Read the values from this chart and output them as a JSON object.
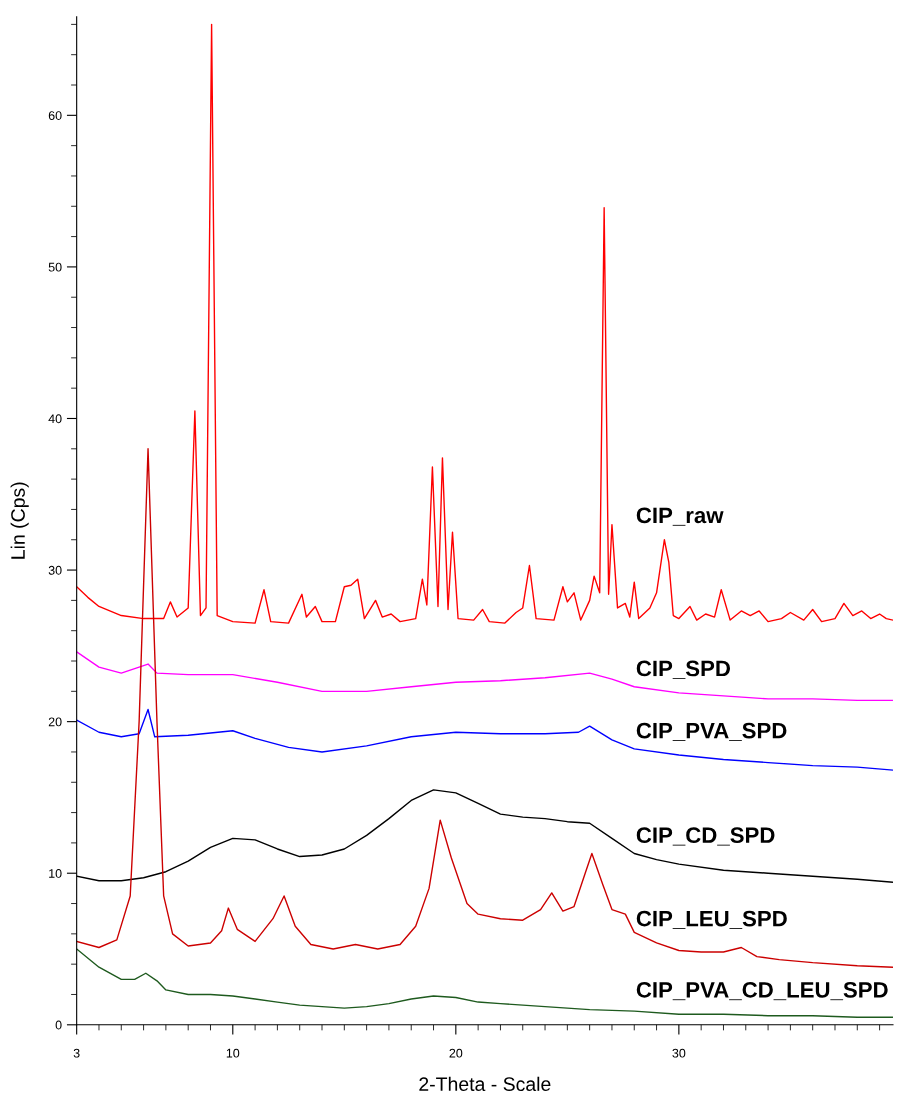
{
  "chart_data": {
    "type": "line",
    "xlabel": "2-Theta - Scale",
    "ylabel": "Lin (Cps)",
    "xlim": [
      3,
      39.6
    ],
    "ylim": [
      0,
      66.5
    ],
    "xticks": [
      3,
      {
        "value": 4,
        "label": null
      },
      {
        "value": 5,
        "label": null
      },
      {
        "value": 6,
        "label": null
      },
      {
        "value": 7,
        "label": null
      },
      {
        "value": 8,
        "label": null
      },
      {
        "value": 9,
        "label": null
      },
      10,
      {
        "value": 11,
        "label": null
      },
      {
        "value": 12,
        "label": null
      },
      {
        "value": 13,
        "label": null
      },
      {
        "value": 14,
        "label": null
      },
      {
        "value": 15,
        "label": null
      },
      {
        "value": 16,
        "label": null
      },
      {
        "value": 17,
        "label": null
      },
      {
        "value": 18,
        "label": null
      },
      {
        "value": 19,
        "label": null
      },
      20,
      {
        "value": 21,
        "label": null
      },
      {
        "value": 22,
        "label": null
      },
      {
        "value": 23,
        "label": null
      },
      {
        "value": 24,
        "label": null
      },
      {
        "value": 25,
        "label": null
      },
      {
        "value": 26,
        "label": null
      },
      {
        "value": 27,
        "label": null
      },
      {
        "value": 28,
        "label": null
      },
      {
        "value": 29,
        "label": null
      },
      30,
      {
        "value": 31,
        "label": null
      },
      {
        "value": 32,
        "label": null
      },
      {
        "value": 33,
        "label": null
      },
      {
        "value": 34,
        "label": null
      },
      {
        "value": 35,
        "label": null
      },
      {
        "value": 36,
        "label": null
      },
      {
        "value": 37,
        "label": null
      },
      {
        "value": 38,
        "label": null
      },
      {
        "value": 39,
        "label": null
      }
    ],
    "yticks": [
      0,
      {
        "value": 2,
        "label": null
      },
      {
        "value": 4,
        "label": null
      },
      {
        "value": 6,
        "label": null
      },
      {
        "value": 8,
        "label": null
      },
      10,
      {
        "value": 12,
        "label": null
      },
      {
        "value": 14,
        "label": null
      },
      {
        "value": 16,
        "label": null
      },
      {
        "value": 18,
        "label": null
      },
      20,
      {
        "value": 22,
        "label": null
      },
      {
        "value": 24,
        "label": null
      },
      {
        "value": 26,
        "label": null
      },
      {
        "value": 28,
        "label": null
      },
      30,
      {
        "value": 32,
        "label": null
      },
      {
        "value": 34,
        "label": null
      },
      {
        "value": 36,
        "label": null
      },
      {
        "value": 38,
        "label": null
      },
      40,
      {
        "value": 42,
        "label": null
      },
      {
        "value": 44,
        "label": null
      },
      {
        "value": 46,
        "label": null
      },
      {
        "value": 48,
        "label": null
      },
      50,
      {
        "value": 52,
        "label": null
      },
      {
        "value": 54,
        "label": null
      },
      {
        "value": 56,
        "label": null
      },
      {
        "value": 58,
        "label": null
      },
      60,
      {
        "value": 62,
        "label": null
      },
      {
        "value": 64,
        "label": null
      },
      {
        "value": 66,
        "label": null
      }
    ],
    "grid": false,
    "legend": false,
    "marker": "none",
    "line_style": "solid",
    "series": [
      {
        "name": "CIP_raw",
        "color": "#ff0000",
        "x": [
          3,
          3.5,
          4,
          5,
          6,
          6.9,
          7.2,
          7.5,
          8.0,
          8.3,
          8.55,
          8.8,
          9.05,
          9.3,
          10,
          11.0,
          11.4,
          11.7,
          12.5,
          13.1,
          13.3,
          13.7,
          14,
          14.6,
          15.0,
          15.3,
          15.6,
          15.9,
          16.4,
          16.7,
          17.1,
          17.5,
          18.2,
          18.5,
          18.7,
          18.95,
          19.2,
          19.4,
          19.65,
          19.85,
          20.1,
          20.8,
          21.2,
          21.5,
          22.2,
          22.7,
          23.0,
          23.3,
          23.6,
          24.4,
          24.8,
          25.0,
          25.3,
          25.6,
          26.0,
          26.2,
          26.45,
          26.65,
          26.85,
          27.0,
          27.25,
          27.6,
          27.8,
          28.0,
          28.2,
          28.7,
          29.0,
          29.35,
          29.55,
          29.75,
          30.0,
          30.5,
          30.8,
          31.2,
          31.6,
          31.9,
          32.3,
          32.8,
          33.2,
          33.6,
          34,
          34.6,
          35.0,
          35.6,
          36.0,
          36.4,
          37.0,
          37.4,
          37.8,
          38.2,
          38.6,
          39.0,
          39.3,
          39.6
        ],
        "values": [
          28.9,
          28.2,
          27.6,
          27.0,
          26.8,
          26.8,
          27.9,
          26.9,
          27.5,
          40.5,
          27.0,
          27.5,
          66,
          27,
          26.6,
          26.5,
          28.7,
          26.6,
          26.5,
          28.4,
          26.9,
          27.6,
          26.6,
          26.6,
          28.9,
          29.0,
          29.4,
          26.8,
          28.0,
          26.9,
          27.1,
          26.6,
          26.8,
          29.4,
          27.7,
          36.8,
          27.6,
          37.4,
          27.4,
          32.5,
          26.8,
          26.7,
          27.4,
          26.6,
          26.5,
          27.2,
          27.5,
          30.3,
          26.8,
          26.7,
          28.9,
          27.9,
          28.5,
          26.7,
          28.0,
          29.6,
          28.5,
          53.9,
          28.4,
          33.0,
          27.5,
          27.8,
          26.9,
          29.2,
          26.8,
          27.5,
          28.5,
          32.0,
          30.5,
          27.0,
          26.8,
          27.6,
          26.7,
          27.1,
          26.9,
          28.7,
          26.7,
          27.3,
          27.0,
          27.3,
          26.6,
          26.8,
          27.2,
          26.7,
          27.4,
          26.6,
          26.8,
          27.8,
          27.0,
          27.3,
          26.8,
          27.1,
          26.8,
          26.7
        ]
      },
      {
        "name": "CIP_SPD",
        "color": "#ff00ff",
        "x": [
          3,
          4,
          5,
          6.2,
          6.6,
          8,
          10,
          12,
          14,
          16,
          18,
          20,
          22,
          24,
          26,
          27,
          28,
          30,
          32,
          34,
          36,
          38,
          39.6
        ],
        "values": [
          24.6,
          23.6,
          23.2,
          23.8,
          23.2,
          23.1,
          23.1,
          22.6,
          22.0,
          22.0,
          22.3,
          22.6,
          22.7,
          22.9,
          23.2,
          22.8,
          22.3,
          21.9,
          21.7,
          21.5,
          21.5,
          21.4,
          21.4
        ]
      },
      {
        "name": "CIP_PVA_SPD",
        "color": "#0000ff",
        "x": [
          3,
          4,
          5,
          5.8,
          6.2,
          6.5,
          8,
          10,
          11,
          12.5,
          14,
          16,
          18,
          20,
          22,
          24,
          25.5,
          26,
          27,
          28,
          30,
          32,
          34,
          36,
          38,
          39.6
        ],
        "values": [
          20.1,
          19.3,
          19.0,
          19.2,
          20.8,
          19.0,
          19.1,
          19.4,
          18.9,
          18.3,
          18.0,
          18.4,
          19.0,
          19.3,
          19.2,
          19.2,
          19.3,
          19.7,
          18.8,
          18.2,
          17.8,
          17.5,
          17.3,
          17.1,
          17.0,
          16.8
        ]
      },
      {
        "name": "CIP_CD_SPD",
        "color": "#000000",
        "x": [
          3,
          4,
          5,
          6,
          7,
          8,
          9,
          10,
          11,
          12,
          13,
          14,
          15,
          16,
          17,
          18,
          19,
          20,
          21,
          22,
          23,
          24,
          25,
          26,
          27,
          28,
          29,
          30,
          32,
          34,
          36,
          38,
          39.6
        ],
        "values": [
          9.8,
          9.5,
          9.5,
          9.7,
          10.1,
          10.8,
          11.7,
          12.3,
          12.2,
          11.6,
          11.1,
          11.2,
          11.6,
          12.5,
          13.6,
          14.8,
          15.5,
          15.3,
          14.6,
          13.9,
          13.7,
          13.6,
          13.4,
          13.3,
          12.3,
          11.3,
          10.9,
          10.6,
          10.2,
          10.0,
          9.8,
          9.6,
          9.4
        ]
      },
      {
        "name": "CIP_LEU_SPD",
        "color": "#cc0000",
        "x": [
          3,
          4,
          4.8,
          5.4,
          5.8,
          6.2,
          6.6,
          6.9,
          7.3,
          8,
          9,
          9.5,
          9.8,
          10.2,
          11,
          11.8,
          12.3,
          12.8,
          13.5,
          14.5,
          15.5,
          16.5,
          17.5,
          18.2,
          18.8,
          19.3,
          19.8,
          20.5,
          21,
          22,
          23,
          23.8,
          24.3,
          24.8,
          25.3,
          25.8,
          26.1,
          26.6,
          27,
          27.6,
          28,
          29,
          30,
          31,
          32,
          32.8,
          33.5,
          34.5,
          36,
          38,
          39.6
        ],
        "values": [
          5.5,
          5.1,
          5.6,
          8.5,
          20,
          38,
          20,
          8.5,
          6.0,
          5.2,
          5.4,
          6.2,
          7.7,
          6.3,
          5.5,
          7.0,
          8.5,
          6.5,
          5.3,
          5.0,
          5.3,
          5.0,
          5.3,
          6.5,
          9.0,
          13.5,
          11.0,
          8.0,
          7.3,
          7.0,
          6.9,
          7.6,
          8.7,
          7.5,
          7.8,
          10.0,
          11.3,
          9.2,
          7.6,
          7.3,
          6.1,
          5.4,
          4.9,
          4.8,
          4.8,
          5.1,
          4.5,
          4.3,
          4.1,
          3.9,
          3.8
        ]
      },
      {
        "name": "CIP_PVA_CD_LEU_SPD",
        "color": "#1e5a1e",
        "x": [
          3,
          4,
          5,
          5.6,
          6.1,
          6.6,
          7,
          8,
          9,
          10,
          11,
          12,
          13,
          14,
          15,
          16,
          17,
          18,
          19,
          20,
          21,
          22,
          24,
          26,
          28,
          30,
          32,
          34,
          36,
          38,
          39.6
        ],
        "values": [
          5.0,
          3.8,
          3.0,
          3.0,
          3.4,
          2.9,
          2.3,
          2.0,
          2.0,
          1.9,
          1.7,
          1.5,
          1.3,
          1.2,
          1.1,
          1.2,
          1.4,
          1.7,
          1.9,
          1.8,
          1.5,
          1.4,
          1.2,
          1.0,
          0.9,
          0.7,
          0.7,
          0.6,
          0.6,
          0.5,
          0.5
        ]
      }
    ]
  }
}
